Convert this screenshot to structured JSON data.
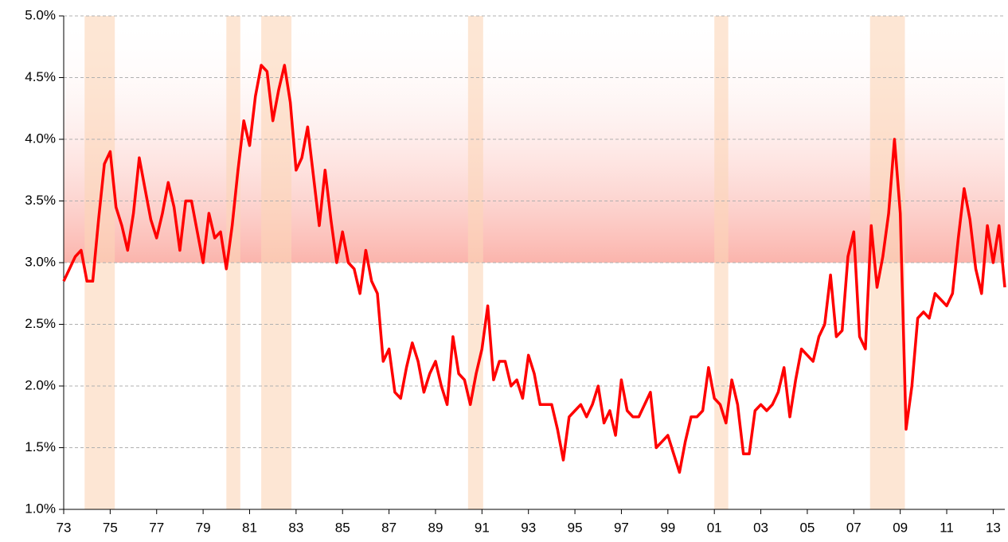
{
  "chart_data": {
    "type": "line",
    "color": "#ff0000",
    "grid": true,
    "xlim": [
      1973,
      2013.5
    ],
    "ylim": [
      1.0,
      5.0
    ],
    "xticks": [
      {
        "value": 1973,
        "label": "73"
      },
      {
        "value": 1975,
        "label": "75"
      },
      {
        "value": 1977,
        "label": "77"
      },
      {
        "value": 1979,
        "label": "79"
      },
      {
        "value": 1981,
        "label": "81"
      },
      {
        "value": 1983,
        "label": "83"
      },
      {
        "value": 1985,
        "label": "85"
      },
      {
        "value": 1987,
        "label": "87"
      },
      {
        "value": 1989,
        "label": "89"
      },
      {
        "value": 1991,
        "label": "91"
      },
      {
        "value": 1993,
        "label": "93"
      },
      {
        "value": 1995,
        "label": "95"
      },
      {
        "value": 1997,
        "label": "97"
      },
      {
        "value": 1999,
        "label": "99"
      },
      {
        "value": 2001,
        "label": "01"
      },
      {
        "value": 2003,
        "label": "03"
      },
      {
        "value": 2005,
        "label": "05"
      },
      {
        "value": 2007,
        "label": "07"
      },
      {
        "value": 2009,
        "label": "09"
      },
      {
        "value": 2011,
        "label": "11"
      },
      {
        "value": 2013,
        "label": "13"
      }
    ],
    "yticks": [
      {
        "value": 1.0,
        "label": "1.0%"
      },
      {
        "value": 1.5,
        "label": "1.5%"
      },
      {
        "value": 2.0,
        "label": "2.0%"
      },
      {
        "value": 2.5,
        "label": "2.5%"
      },
      {
        "value": 3.0,
        "label": "3.0%"
      },
      {
        "value": 3.5,
        "label": "3.5%"
      },
      {
        "value": 4.0,
        "label": "4.0%"
      },
      {
        "value": 4.5,
        "label": "4.5%"
      },
      {
        "value": 5.0,
        "label": "5.0%"
      }
    ],
    "band": [
      3.0,
      5.0
    ],
    "recessions": [
      [
        1973.9,
        1975.2
      ],
      [
        1980.0,
        1980.6
      ],
      [
        1981.5,
        1982.8
      ],
      [
        1990.4,
        1991.05
      ],
      [
        2001.0,
        2001.6
      ],
      [
        2007.7,
        2009.2
      ]
    ],
    "x": [
      1973,
      1973.25,
      1973.5,
      1973.75,
      1974,
      1974.25,
      1974.5,
      1974.75,
      1975,
      1975.25,
      1975.5,
      1975.75,
      1976,
      1976.25,
      1976.5,
      1976.75,
      1977,
      1977.25,
      1977.5,
      1977.75,
      1978,
      1978.25,
      1978.5,
      1978.75,
      1979,
      1979.25,
      1979.5,
      1979.75,
      1980,
      1980.25,
      1980.5,
      1980.75,
      1981,
      1981.25,
      1981.5,
      1981.75,
      1982,
      1982.25,
      1982.5,
      1982.75,
      1983,
      1983.25,
      1983.5,
      1983.75,
      1984,
      1984.25,
      1984.5,
      1984.75,
      1985,
      1985.25,
      1985.5,
      1985.75,
      1986,
      1986.25,
      1986.5,
      1986.75,
      1987,
      1987.25,
      1987.5,
      1987.75,
      1988,
      1988.25,
      1988.5,
      1988.75,
      1989,
      1989.25,
      1989.5,
      1989.75,
      1990,
      1990.25,
      1990.5,
      1990.75,
      1991,
      1991.25,
      1991.5,
      1991.75,
      1992,
      1992.25,
      1992.5,
      1992.75,
      1993,
      1993.25,
      1993.5,
      1993.75,
      1994,
      1994.25,
      1994.5,
      1994.75,
      1995,
      1995.25,
      1995.5,
      1995.75,
      1996,
      1996.25,
      1996.5,
      1996.75,
      1997,
      1997.25,
      1997.5,
      1997.75,
      1998,
      1998.25,
      1998.5,
      1998.75,
      1999,
      1999.25,
      1999.5,
      1999.75,
      2000,
      2000.25,
      2000.5,
      2000.75,
      2001,
      2001.25,
      2001.5,
      2001.75,
      2002,
      2002.25,
      2002.5,
      2002.75,
      2003,
      2003.25,
      2003.5,
      2003.75,
      2004,
      2004.25,
      2004.5,
      2004.75,
      2005,
      2005.25,
      2005.5,
      2005.75,
      2006,
      2006.25,
      2006.5,
      2006.75,
      2007,
      2007.25,
      2007.5,
      2007.75,
      2008,
      2008.25,
      2008.5,
      2008.75,
      2009,
      2009.25,
      2009.5,
      2009.75,
      2010,
      2010.25,
      2010.5,
      2010.75,
      2011,
      2011.25,
      2011.5,
      2011.75,
      2012,
      2012.25,
      2012.5,
      2012.75,
      2013,
      2013.25,
      2013.5
    ],
    "values": [
      2.85,
      2.95,
      3.05,
      3.1,
      2.85,
      2.85,
      3.35,
      3.8,
      3.9,
      3.45,
      3.3,
      3.1,
      3.4,
      3.85,
      3.6,
      3.35,
      3.2,
      3.4,
      3.65,
      3.45,
      3.1,
      3.5,
      3.5,
      3.25,
      3.0,
      3.4,
      3.2,
      3.25,
      2.95,
      3.3,
      3.75,
      4.15,
      3.95,
      4.35,
      4.6,
      4.55,
      4.15,
      4.4,
      4.6,
      4.3,
      3.75,
      3.85,
      4.1,
      3.7,
      3.3,
      3.75,
      3.35,
      3.0,
      3.25,
      3.0,
      2.95,
      2.75,
      3.1,
      2.85,
      2.75,
      2.2,
      2.3,
      1.95,
      1.9,
      2.15,
      2.35,
      2.2,
      1.95,
      2.1,
      2.2,
      2.0,
      1.85,
      2.4,
      2.1,
      2.05,
      1.85,
      2.1,
      2.3,
      2.65,
      2.05,
      2.2,
      2.2,
      2.0,
      2.05,
      1.9,
      2.25,
      2.1,
      1.85,
      1.85,
      1.85,
      1.65,
      1.4,
      1.75,
      1.8,
      1.85,
      1.75,
      1.85,
      2.0,
      1.7,
      1.8,
      1.6,
      2.05,
      1.8,
      1.75,
      1.75,
      1.85,
      1.95,
      1.5,
      1.55,
      1.6,
      1.45,
      1.3,
      1.55,
      1.75,
      1.75,
      1.8,
      2.15,
      1.9,
      1.85,
      1.7,
      2.05,
      1.85,
      1.45,
      1.45,
      1.8,
      1.85,
      1.8,
      1.85,
      1.95,
      2.15,
      1.75,
      2.05,
      2.3,
      2.25,
      2.2,
      2.4,
      2.5,
      2.9,
      2.4,
      2.45,
      3.05,
      3.25,
      2.4,
      2.3,
      3.3,
      2.8,
      3.05,
      3.4,
      4.0,
      3.4,
      1.65,
      2.0,
      2.55,
      2.6,
      2.55,
      2.75,
      2.7,
      2.65,
      2.75,
      3.2,
      3.6,
      3.35,
      2.95,
      2.75,
      3.3,
      3.0,
      3.3,
      2.8
    ]
  }
}
